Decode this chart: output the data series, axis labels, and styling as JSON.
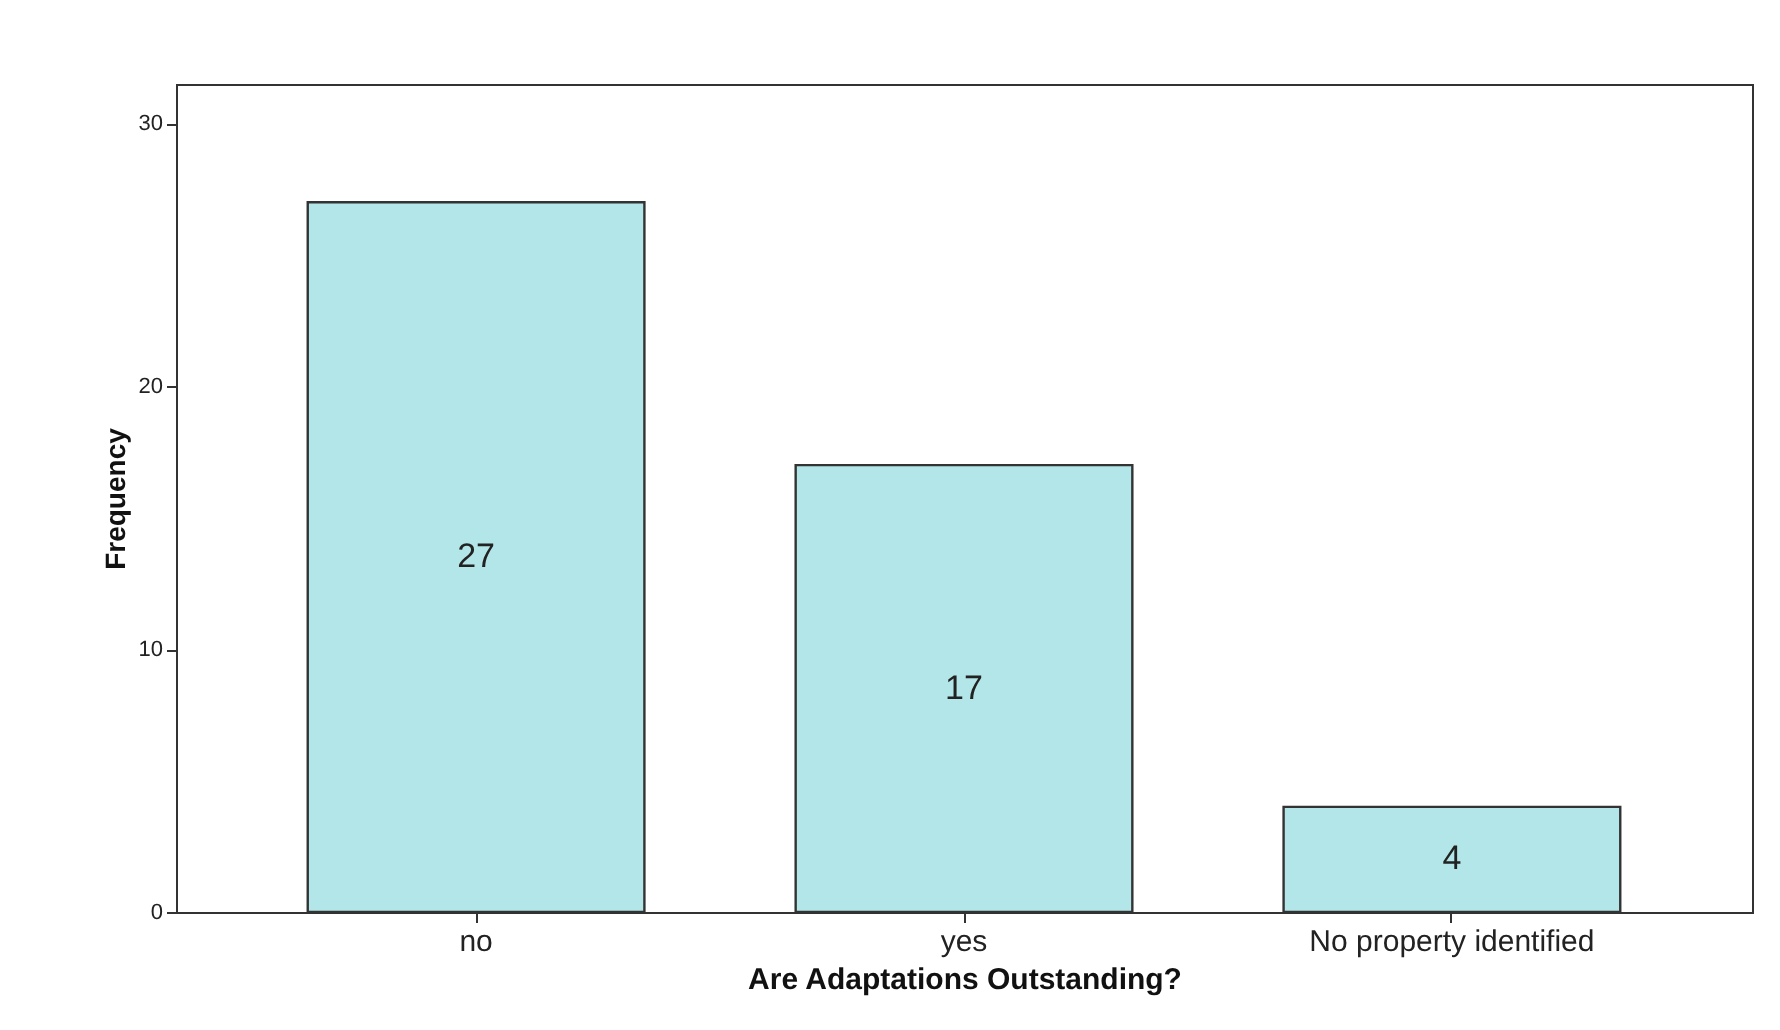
{
  "chart_data": {
    "type": "bar",
    "xlabel": "Are Adaptations Outstanding?",
    "ylabel": "Frequency",
    "categories": [
      "no",
      "yes",
      "No property identified"
    ],
    "values": [
      27,
      17,
      4
    ],
    "color": "#b3e6e8",
    "ylim": [
      0,
      31.5
    ],
    "yticks": [
      0,
      10,
      20,
      30
    ],
    "grid": false,
    "data_labels": true
  }
}
